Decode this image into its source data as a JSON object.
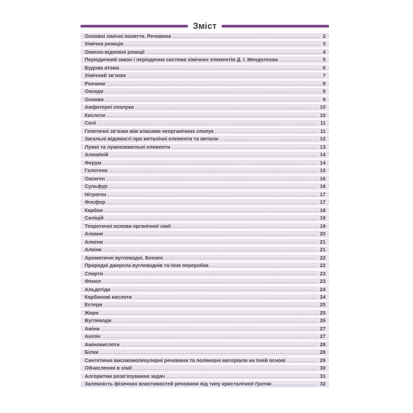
{
  "page": {
    "title": "Зміст"
  },
  "colors": {
    "accent_purple": "#7c4a8c",
    "row_background": "#eae3ee",
    "text": "#474549",
    "leader_dots": "#8f8f8f",
    "page_background": "#ffffff"
  },
  "toc": {
    "entries": [
      {
        "title": "Основні хімічні поняття. Речовина",
        "page": "2"
      },
      {
        "title": "Хімічна реакція",
        "page": "3"
      },
      {
        "title": "Окисно-відновні реакції",
        "page": "4"
      },
      {
        "title": "Періодичний закон і періодична система хімічних елементів Д. І. Менделєєва",
        "page": "5"
      },
      {
        "title": "Будова атома",
        "page": "6"
      },
      {
        "title": "Хімічний зв’язок",
        "page": "7"
      },
      {
        "title": "Розчини",
        "page": "8"
      },
      {
        "title": "Оксиди",
        "page": "9"
      },
      {
        "title": "Основи",
        "page": "9"
      },
      {
        "title": "Амфотерні сполуки",
        "page": "10"
      },
      {
        "title": "Кислоти",
        "page": "10"
      },
      {
        "title": "Солі",
        "page": "11"
      },
      {
        "title": "Генетичні зв’язки між класами неорганічних сполук",
        "page": "11"
      },
      {
        "title": "Загальні відомості про металічні елементи та метали",
        "page": "12"
      },
      {
        "title": "Лужні та лужноземельні елементи",
        "page": "13"
      },
      {
        "title": "Алюміній",
        "page": "14"
      },
      {
        "title": "Ферум",
        "page": "14"
      },
      {
        "title": "Галогени",
        "page": "15"
      },
      {
        "title": "Оксиген",
        "page": "16"
      },
      {
        "title": "Сульфур",
        "page": "16"
      },
      {
        "title": "Нітроген",
        "page": "17"
      },
      {
        "title": "Фосфор",
        "page": "17"
      },
      {
        "title": "Карбон",
        "page": "18"
      },
      {
        "title": "Силіцій",
        "page": "18"
      },
      {
        "title": "Теоретичні основи органічної хімії",
        "page": "19"
      },
      {
        "title": "Алкани",
        "page": "20"
      },
      {
        "title": "Алкени",
        "page": "21"
      },
      {
        "title": "Алкіни",
        "page": "21"
      },
      {
        "title": "Ароматичні вуглеводні. Бензен",
        "page": "22"
      },
      {
        "title": "Природні джерела вуглеводнів та їхня переробка",
        "page": "22"
      },
      {
        "title": "Спирти",
        "page": "23"
      },
      {
        "title": "Фенол",
        "page": "23"
      },
      {
        "title": "Альдегіди",
        "page": "24"
      },
      {
        "title": "Карбонові кислоти",
        "page": "24"
      },
      {
        "title": "Естери",
        "page": "25"
      },
      {
        "title": "Жири",
        "page": "25"
      },
      {
        "title": "Вуглеводи",
        "page": "26"
      },
      {
        "title": "Аміни",
        "page": "27"
      },
      {
        "title": "Анілін",
        "page": "27"
      },
      {
        "title": "Амінокислоти",
        "page": "28"
      },
      {
        "title": "Білки",
        "page": "28"
      },
      {
        "title": "Синтетичні високомолекулярні речовини та полімерні матеріали на їхній основі",
        "page": "29"
      },
      {
        "title": "Обчислення в хімії",
        "page": "30"
      },
      {
        "title": "Алгоритми розв’язування задач",
        "page": "31"
      },
      {
        "title": "Залежність фізичних властивостей речовини від типу кристалічної ґратки",
        "page": "32"
      }
    ]
  }
}
